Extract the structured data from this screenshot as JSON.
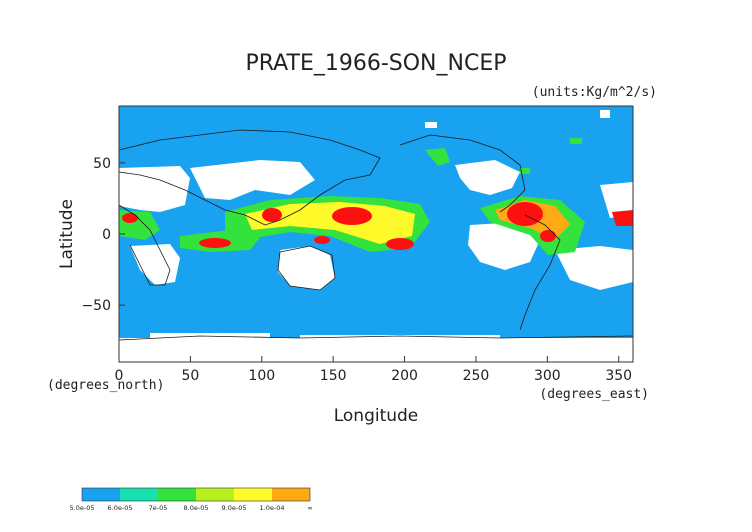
{
  "title": "PRATE_1966-SON_NCEP",
  "units": "(units:Kg/m^2/s)",
  "axes": {
    "xlabel": "Longitude",
    "ylabel": "Latitude",
    "x_unit": "(degrees_east)",
    "y_unit": "(degrees_north)",
    "x_ticks": [
      "0",
      "50",
      "100",
      "150",
      "200",
      "250",
      "300",
      "350"
    ],
    "y_ticks": [
      "50",
      "0",
      "−50"
    ]
  },
  "colors": {
    "ocean": "#19a2f0",
    "land": "#ffffff",
    "coast": "#1a1a1a",
    "frame": "#333333"
  },
  "legend": {
    "labels": [
      "5.0e-05",
      "6.0e-05",
      "7e-05",
      "8.0e-05",
      "9.0e-05",
      "1.0e-04",
      "∞"
    ],
    "colors": [
      "#19a2f0",
      "#19e0b0",
      "#33e23d",
      "#b8f01e",
      "#fffa2a",
      "#ffa914",
      "#ff1010"
    ]
  },
  "chart_data": {
    "type": "heatmap",
    "title": "PRATE_1966-SON_NCEP",
    "xlabel": "Longitude",
    "ylabel": "Latitude",
    "xlim": [
      0,
      360
    ],
    "ylim": [
      -90,
      90
    ],
    "x_ticks": [
      0,
      50,
      100,
      150,
      200,
      250,
      300,
      350
    ],
    "y_ticks": [
      -50,
      0,
      50
    ],
    "color_levels": [
      "5.0e-05",
      "6.0e-05",
      "7e-05",
      "8.0e-05",
      "9.0e-05",
      "1.0e-04",
      "∞"
    ]
  }
}
